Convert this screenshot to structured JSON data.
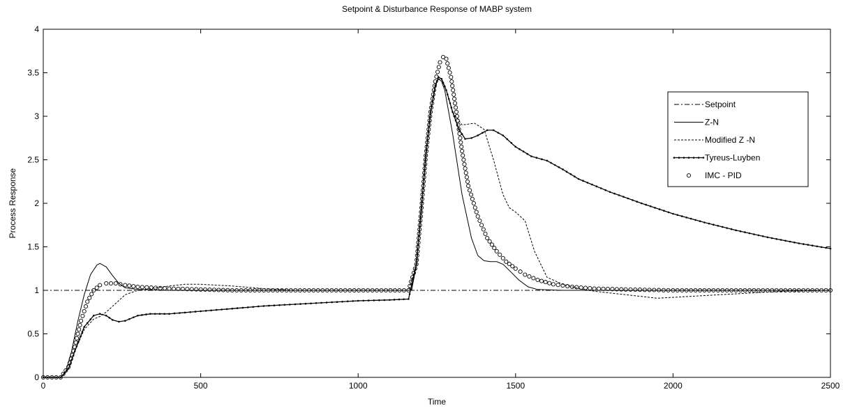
{
  "chart_data": {
    "type": "line",
    "title": "Setpoint & Disturbance Response of MABP system",
    "xlabel": "Time",
    "ylabel": "Process Response",
    "xlim": [
      0,
      2500
    ],
    "ylim": [
      0,
      4
    ],
    "x_ticks": [
      "0",
      "500",
      "1000",
      "1500",
      "2000",
      "2500"
    ],
    "y_ticks": [
      "0",
      "0.5",
      "1",
      "1.5",
      "2",
      "2.5",
      "3",
      "3.5",
      "4"
    ],
    "grid": false,
    "legend_position": "right",
    "series": [
      {
        "name": "Setpoint",
        "style": "dashdot",
        "points": [
          [
            0,
            1
          ],
          [
            2500,
            1
          ]
        ]
      },
      {
        "name": "Z-N",
        "style": "solid",
        "points": [
          [
            0,
            0
          ],
          [
            55,
            0
          ],
          [
            70,
            0.05
          ],
          [
            90,
            0.3
          ],
          [
            110,
            0.65
          ],
          [
            130,
            0.95
          ],
          [
            150,
            1.18
          ],
          [
            170,
            1.29
          ],
          [
            180,
            1.31
          ],
          [
            200,
            1.27
          ],
          [
            220,
            1.17
          ],
          [
            240,
            1.08
          ],
          [
            260,
            1.03
          ],
          [
            300,
            1.01
          ],
          [
            400,
            1.0
          ],
          [
            1160,
            1.0
          ],
          [
            1170,
            1.0
          ],
          [
            1185,
            1.3
          ],
          [
            1200,
            1.9
          ],
          [
            1215,
            2.55
          ],
          [
            1230,
            3.05
          ],
          [
            1245,
            3.35
          ],
          [
            1255,
            3.43
          ],
          [
            1265,
            3.4
          ],
          [
            1275,
            3.3
          ],
          [
            1300,
            2.8
          ],
          [
            1330,
            2.1
          ],
          [
            1360,
            1.6
          ],
          [
            1380,
            1.4
          ],
          [
            1400,
            1.34
          ],
          [
            1420,
            1.33
          ],
          [
            1440,
            1.33
          ],
          [
            1460,
            1.3
          ],
          [
            1480,
            1.23
          ],
          [
            1510,
            1.12
          ],
          [
            1540,
            1.04
          ],
          [
            1570,
            1.01
          ],
          [
            1650,
            1.0
          ],
          [
            2500,
            1.0
          ]
        ]
      },
      {
        "name": "Modified Z -N",
        "style": "dashed",
        "points": [
          [
            0,
            0
          ],
          [
            55,
            0
          ],
          [
            80,
            0.1
          ],
          [
            100,
            0.3
          ],
          [
            130,
            0.55
          ],
          [
            160,
            0.67
          ],
          [
            180,
            0.7
          ],
          [
            200,
            0.75
          ],
          [
            230,
            0.85
          ],
          [
            260,
            0.95
          ],
          [
            300,
            1.0
          ],
          [
            400,
            1.05
          ],
          [
            450,
            1.07
          ],
          [
            500,
            1.07
          ],
          [
            600,
            1.05
          ],
          [
            700,
            1.02
          ],
          [
            800,
            1.0
          ],
          [
            1160,
            1.0
          ],
          [
            1185,
            1.3
          ],
          [
            1200,
            1.9
          ],
          [
            1215,
            2.55
          ],
          [
            1230,
            3.05
          ],
          [
            1245,
            3.33
          ],
          [
            1255,
            3.43
          ],
          [
            1265,
            3.42
          ],
          [
            1280,
            3.3
          ],
          [
            1300,
            3.05
          ],
          [
            1330,
            2.9
          ],
          [
            1370,
            2.92
          ],
          [
            1400,
            2.85
          ],
          [
            1430,
            2.5
          ],
          [
            1460,
            2.1
          ],
          [
            1480,
            1.95
          ],
          [
            1500,
            1.9
          ],
          [
            1530,
            1.8
          ],
          [
            1560,
            1.45
          ],
          [
            1600,
            1.15
          ],
          [
            1650,
            1.07
          ],
          [
            1700,
            1.02
          ],
          [
            1750,
            0.99
          ],
          [
            1850,
            0.95
          ],
          [
            1950,
            0.91
          ],
          [
            2050,
            0.93
          ],
          [
            2200,
            0.96
          ],
          [
            2350,
            0.99
          ],
          [
            2500,
            1.0
          ]
        ]
      },
      {
        "name": "Tyreus-Luyben",
        "style": "solid-dots",
        "points": [
          [
            0,
            0
          ],
          [
            55,
            0
          ],
          [
            80,
            0.1
          ],
          [
            100,
            0.3
          ],
          [
            130,
            0.58
          ],
          [
            160,
            0.71
          ],
          [
            180,
            0.73
          ],
          [
            200,
            0.71
          ],
          [
            220,
            0.66
          ],
          [
            240,
            0.64
          ],
          [
            260,
            0.65
          ],
          [
            300,
            0.71
          ],
          [
            340,
            0.73
          ],
          [
            400,
            0.73
          ],
          [
            500,
            0.76
          ],
          [
            600,
            0.79
          ],
          [
            700,
            0.82
          ],
          [
            800,
            0.84
          ],
          [
            900,
            0.86
          ],
          [
            1000,
            0.88
          ],
          [
            1100,
            0.89
          ],
          [
            1160,
            0.9
          ],
          [
            1185,
            1.3
          ],
          [
            1200,
            1.9
          ],
          [
            1215,
            2.55
          ],
          [
            1230,
            3.05
          ],
          [
            1245,
            3.35
          ],
          [
            1255,
            3.45
          ],
          [
            1265,
            3.43
          ],
          [
            1280,
            3.3
          ],
          [
            1300,
            3.05
          ],
          [
            1320,
            2.85
          ],
          [
            1340,
            2.74
          ],
          [
            1360,
            2.75
          ],
          [
            1380,
            2.78
          ],
          [
            1410,
            2.84
          ],
          [
            1430,
            2.84
          ],
          [
            1460,
            2.78
          ],
          [
            1500,
            2.65
          ],
          [
            1550,
            2.54
          ],
          [
            1600,
            2.49
          ],
          [
            1650,
            2.39
          ],
          [
            1700,
            2.28
          ],
          [
            1800,
            2.13
          ],
          [
            1900,
            2.0
          ],
          [
            2000,
            1.88
          ],
          [
            2100,
            1.78
          ],
          [
            2200,
            1.69
          ],
          [
            2300,
            1.61
          ],
          [
            2400,
            1.54
          ],
          [
            2500,
            1.48
          ]
        ]
      },
      {
        "name": "IMC - PID",
        "style": "circles",
        "points": [
          [
            0,
            0
          ],
          [
            55,
            0
          ],
          [
            80,
            0.12
          ],
          [
            100,
            0.35
          ],
          [
            120,
            0.65
          ],
          [
            140,
            0.87
          ],
          [
            160,
            1.0
          ],
          [
            180,
            1.06
          ],
          [
            200,
            1.08
          ],
          [
            230,
            1.08
          ],
          [
            260,
            1.06
          ],
          [
            300,
            1.04
          ],
          [
            400,
            1.02
          ],
          [
            500,
            1.01
          ],
          [
            600,
            1.0
          ],
          [
            1160,
            1.0
          ],
          [
            1185,
            1.3
          ],
          [
            1200,
            1.9
          ],
          [
            1215,
            2.55
          ],
          [
            1230,
            3.05
          ],
          [
            1245,
            3.4
          ],
          [
            1260,
            3.62
          ],
          [
            1270,
            3.68
          ],
          [
            1280,
            3.66
          ],
          [
            1295,
            3.45
          ],
          [
            1310,
            3.1
          ],
          [
            1330,
            2.6
          ],
          [
            1350,
            2.2
          ],
          [
            1380,
            1.85
          ],
          [
            1410,
            1.6
          ],
          [
            1440,
            1.45
          ],
          [
            1470,
            1.33
          ],
          [
            1500,
            1.25
          ],
          [
            1530,
            1.18
          ],
          [
            1570,
            1.12
          ],
          [
            1620,
            1.07
          ],
          [
            1680,
            1.04
          ],
          [
            1750,
            1.02
          ],
          [
            1850,
            1.01
          ],
          [
            2000,
            1.0
          ],
          [
            2500,
            1.0
          ]
        ]
      }
    ]
  }
}
